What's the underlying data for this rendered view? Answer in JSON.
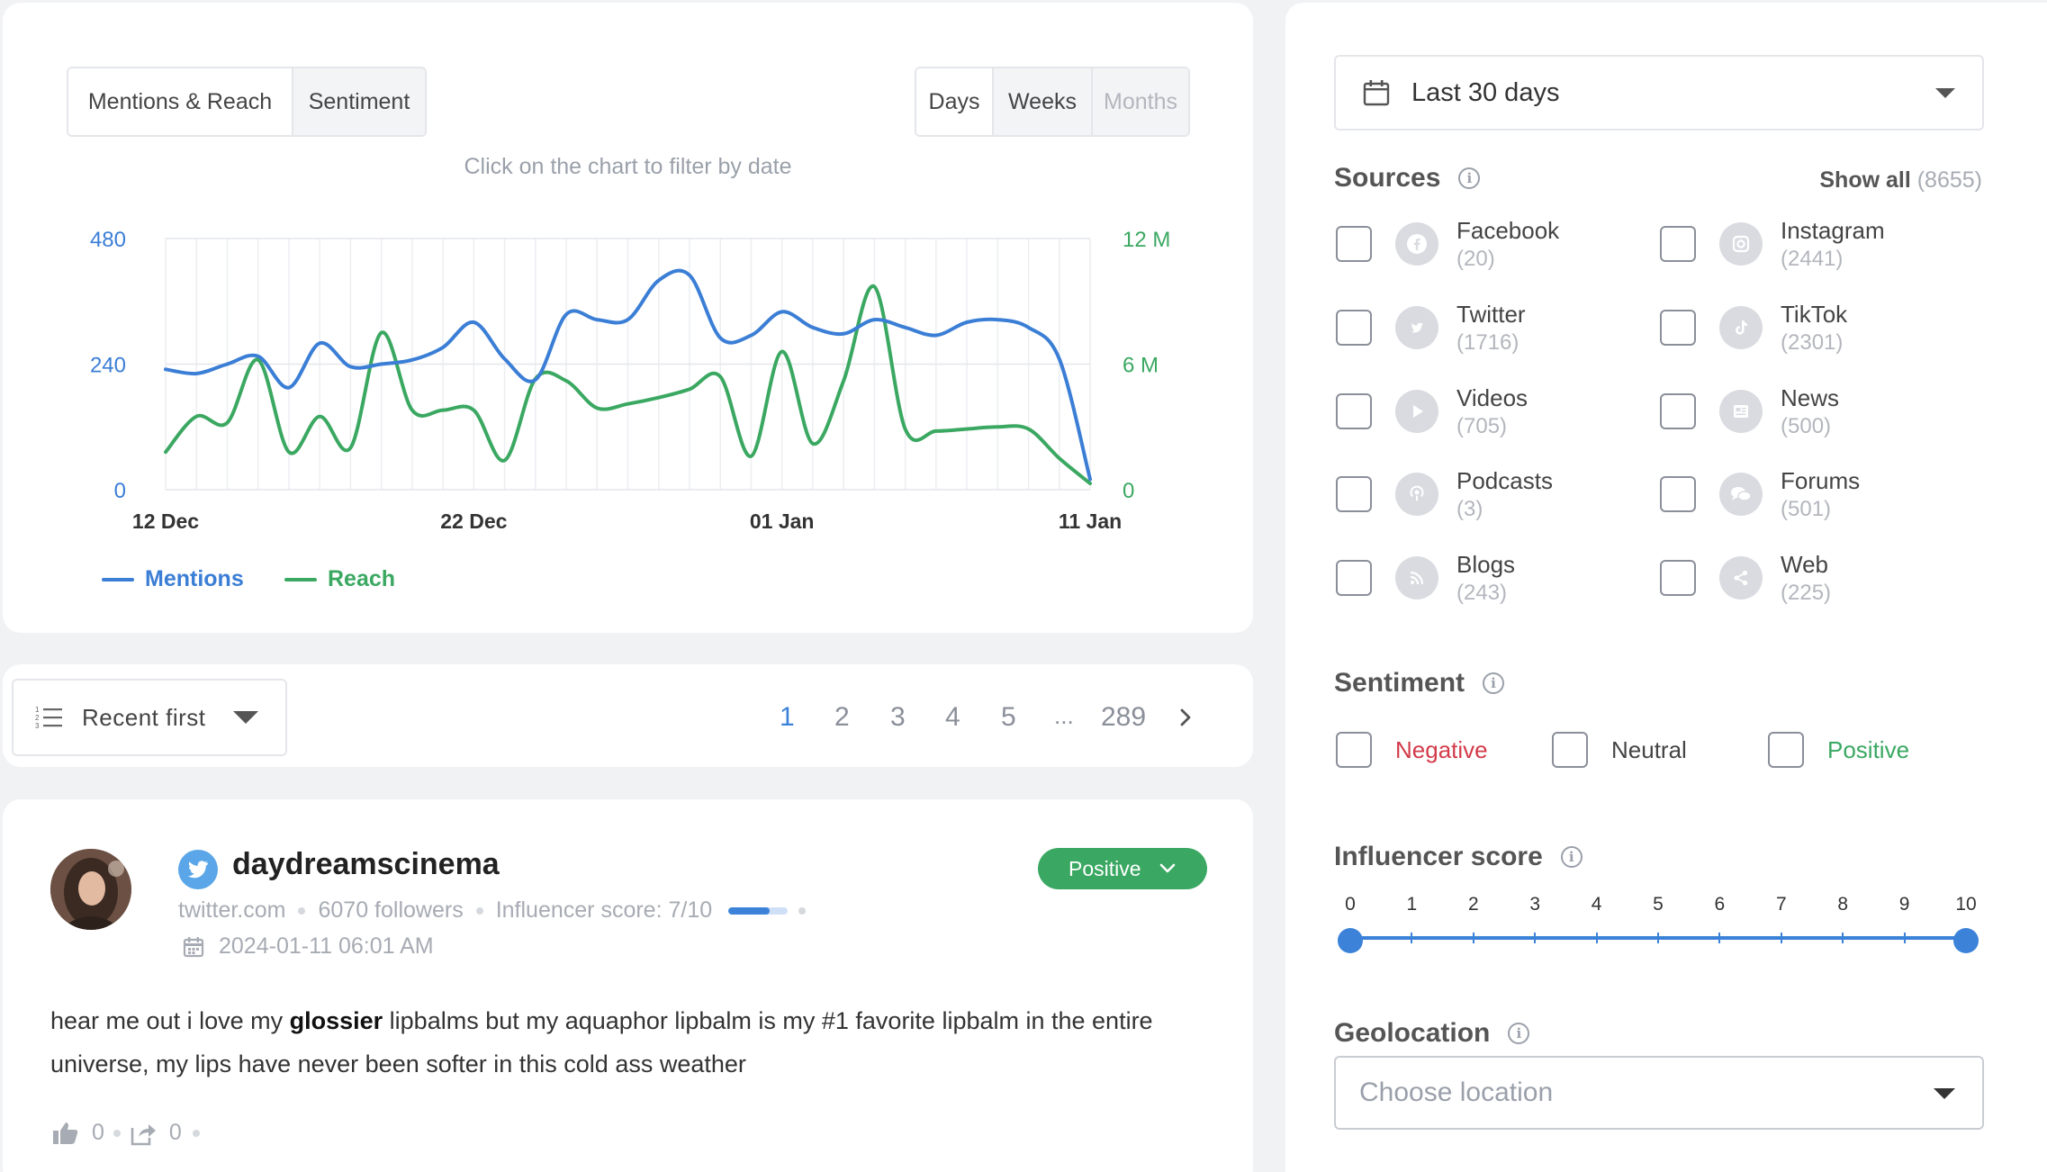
{
  "colors": {
    "accent": "#3b82d8",
    "mentions": "#3b7ed6",
    "reach": "#3ba862",
    "negative": "#d23b4a",
    "positive": "#3aa862"
  },
  "chart_panel": {
    "tabs": [
      "Mentions & Reach",
      "Sentiment"
    ],
    "granularity": [
      "Days",
      "Weeks",
      "Months"
    ],
    "hint": "Click on the chart to filter by date",
    "legend": {
      "mentions": "Mentions",
      "reach": "Reach"
    }
  },
  "chart_data": {
    "type": "line",
    "x_tick_labels": [
      "12 Dec",
      "22 Dec",
      "01 Jan",
      "11 Jan"
    ],
    "x_range": [
      0,
      30
    ],
    "y_left": {
      "ticks": [
        "0",
        "240",
        "480"
      ],
      "range": [
        0,
        480
      ]
    },
    "y_right": {
      "ticks": [
        "0",
        "6 M",
        "12 M"
      ],
      "range": [
        0,
        12
      ]
    },
    "grid": true,
    "legend_position": "bottom-left",
    "series": [
      {
        "name": "Mentions",
        "axis": "left",
        "values": [
          230,
          222,
          240,
          255,
          195,
          280,
          235,
          240,
          248,
          272,
          320,
          250,
          210,
          335,
          325,
          325,
          400,
          410,
          290,
          295,
          340,
          310,
          298,
          325,
          310,
          295,
          320,
          325,
          310,
          250,
          20
        ]
      },
      {
        "name": "Reach",
        "axis": "right",
        "values": [
          1.8,
          3.5,
          3.2,
          6.2,
          1.8,
          3.5,
          2.0,
          7.5,
          3.8,
          3.8,
          3.8,
          1.4,
          5.3,
          5.2,
          3.9,
          4.1,
          4.4,
          4.8,
          5.4,
          1.6,
          6.6,
          2.2,
          5.2,
          9.7,
          2.9,
          2.8,
          2.9,
          3.0,
          2.9,
          1.5,
          0.3
        ]
      }
    ]
  },
  "list_controls": {
    "sort_label": "Recent first",
    "pages": [
      "1",
      "2",
      "3",
      "4",
      "5",
      "...",
      "289"
    ],
    "active_page": "1"
  },
  "mention": {
    "author": "daydreamscinema",
    "source": "twitter.com",
    "followers": "6070 followers",
    "influencer": "Influencer score: 7/10",
    "influencer_score": 0.7,
    "date": "2024-01-11 06:01 AM",
    "sentiment": "Positive",
    "text_before": "hear me out i love my ",
    "text_keyword": "glossier",
    "text_after": " lipbalms but my aquaphor lipbalm is my #1 favorite lipbalm in the entire universe, my lips have never been softer in this cold ass weather",
    "likes": "0",
    "shares": "0"
  },
  "filters": {
    "date_range": "Last 30 days",
    "sources_title": "Sources",
    "show_all": "Show all",
    "show_all_count": "(8655)",
    "sources": [
      {
        "name": "Facebook",
        "count": "(20)",
        "icon": "facebook-icon"
      },
      {
        "name": "Instagram",
        "count": "(2441)",
        "icon": "instagram-icon"
      },
      {
        "name": "Twitter",
        "count": "(1716)",
        "icon": "twitter-icon"
      },
      {
        "name": "TikTok",
        "count": "(2301)",
        "icon": "tiktok-icon"
      },
      {
        "name": "Videos",
        "count": "(705)",
        "icon": "play-icon"
      },
      {
        "name": "News",
        "count": "(500)",
        "icon": "newspaper-icon"
      },
      {
        "name": "Podcasts",
        "count": "(3)",
        "icon": "podcast-icon"
      },
      {
        "name": "Forums",
        "count": "(501)",
        "icon": "forum-icon"
      },
      {
        "name": "Blogs",
        "count": "(243)",
        "icon": "rss-icon"
      },
      {
        "name": "Web",
        "count": "(225)",
        "icon": "share-icon"
      }
    ],
    "sentiment_title": "Sentiment",
    "sentiments": [
      "Negative",
      "Neutral",
      "Positive"
    ],
    "influencer_title": "Influencer score",
    "influencer_ticks": [
      "0",
      "1",
      "2",
      "3",
      "4",
      "5",
      "6",
      "7",
      "8",
      "9",
      "10"
    ],
    "influencer_range": [
      0,
      10
    ],
    "geo_title": "Geolocation",
    "geo_placeholder": "Choose location"
  }
}
